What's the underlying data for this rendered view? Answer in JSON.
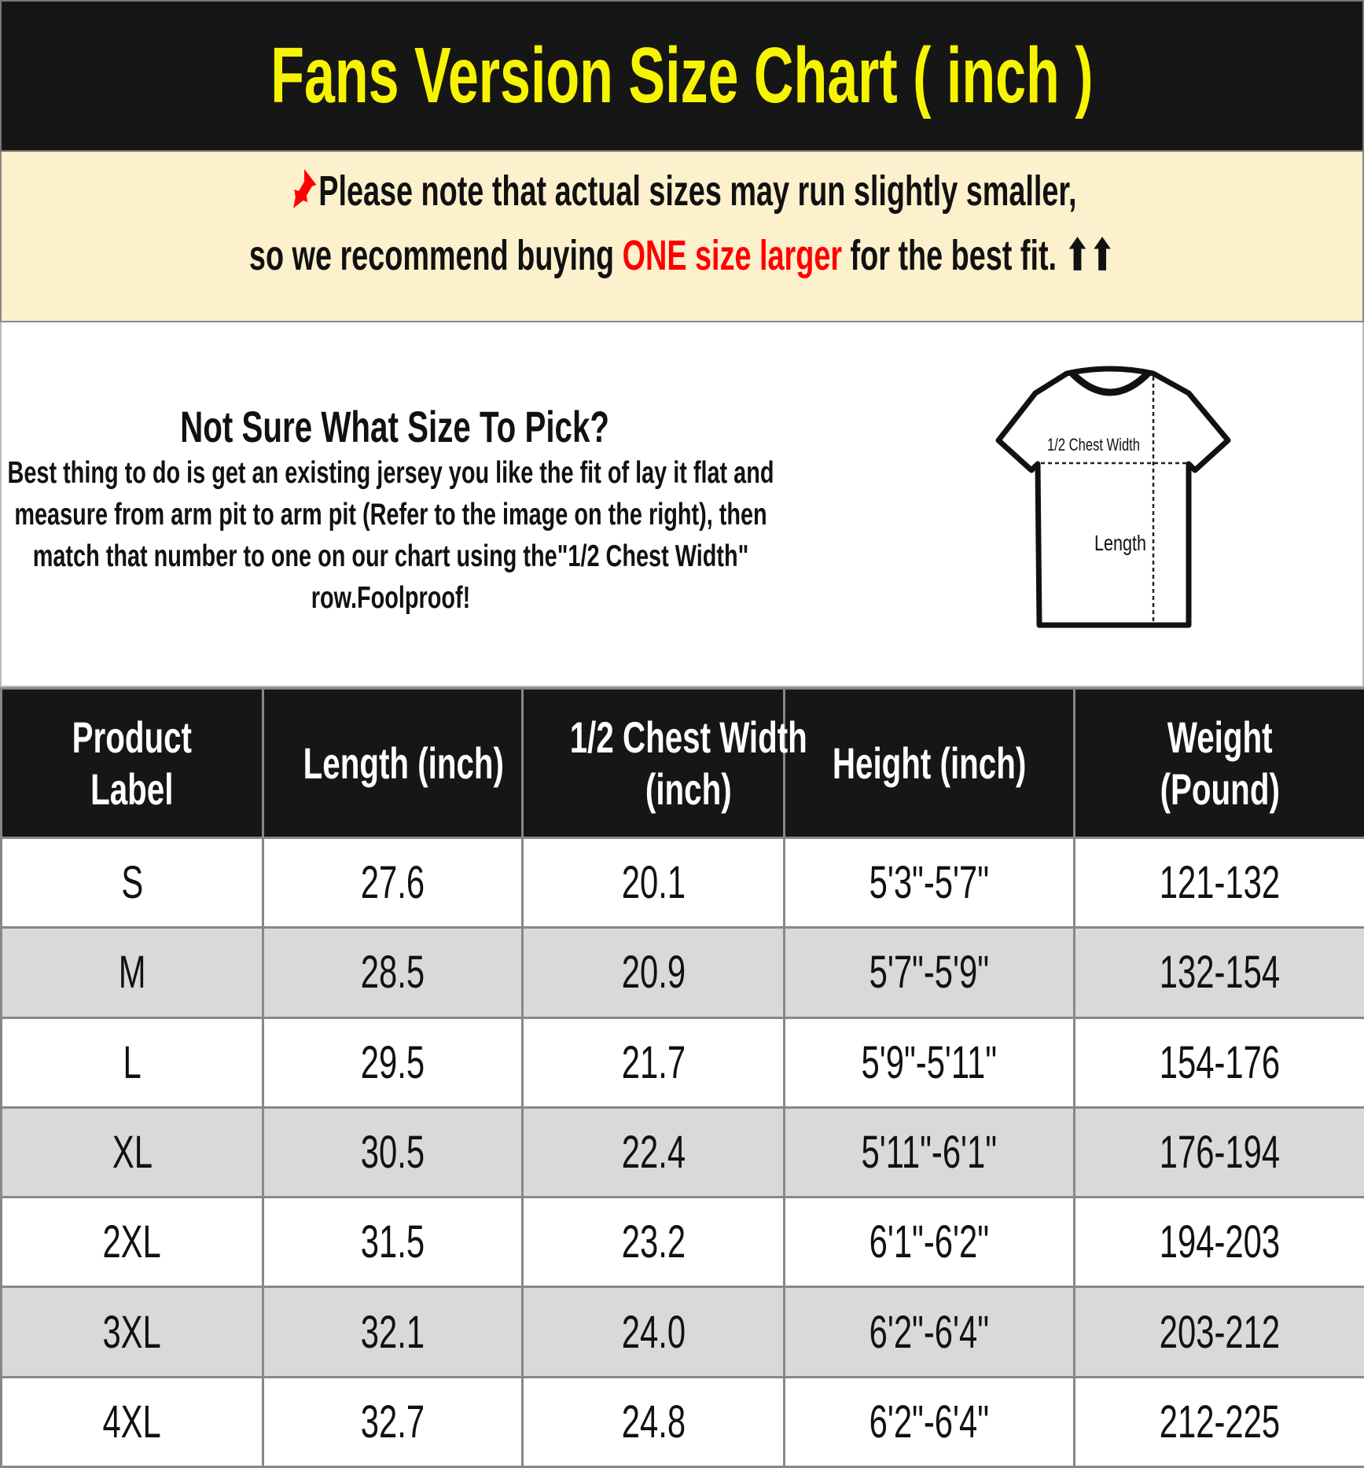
{
  "title": "Fans Version Size Chart ( inch )",
  "note": {
    "icon": "pushpin-icon",
    "line1": "Please note that actual sizes may run slightly smaller,",
    "line2_prefix": "so we recommend buying ",
    "line2_highlight": "ONE size larger",
    "line2_suffix": " for the best fit.",
    "arrows": "⬆⬆",
    "highlight_color": "#ff0000"
  },
  "info": {
    "heading": "Not Sure What Size To Pick?",
    "body": "Best thing to do is get an existing jersey you like the fit of lay it flat and measure from arm pit to arm pit (Refer to the image on the right), then match that number to one on our chart using the\"1/2 Chest Width\" row.Foolproof!",
    "diagram": {
      "chest_label": "1/2 Chest Width",
      "length_label": "Length"
    }
  },
  "table": {
    "headers": [
      [
        "Product",
        "Label"
      ],
      [
        "Length (inch)"
      ],
      [
        "1/2 Chest Width",
        "(inch)"
      ],
      [
        "Height (inch)"
      ],
      [
        "Weight",
        "(Pound)"
      ]
    ],
    "rows": [
      [
        "S",
        "27.6",
        "20.1",
        "5'3\"-5'7\"",
        "121-132"
      ],
      [
        "M",
        "28.5",
        "20.9",
        "5'7\"-5'9\"",
        "132-154"
      ],
      [
        "L",
        "29.5",
        "21.7",
        "5'9\"-5'11\"",
        "154-176"
      ],
      [
        "XL",
        "30.5",
        "22.4",
        "5'11\"-6'1\"",
        "176-194"
      ],
      [
        "2XL",
        "31.5",
        "23.2",
        "6'1\"-6'2\"",
        "194-203"
      ],
      [
        "3XL",
        "32.1",
        "24.0",
        "6'2\"-6'4\"",
        "203-212"
      ],
      [
        "4XL",
        "32.7",
        "24.8",
        "6'2\"-6'4\"",
        "212-225"
      ]
    ]
  }
}
